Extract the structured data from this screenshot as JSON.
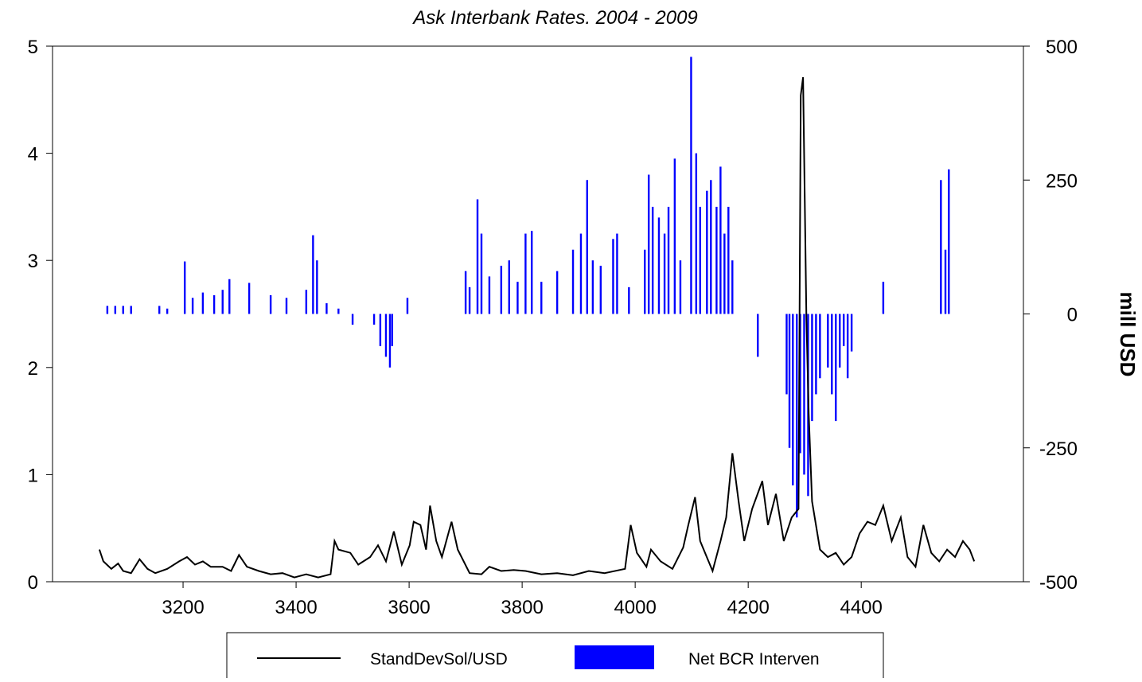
{
  "chart_data": {
    "type": "line",
    "title": "Ask Interbank Rates. 2004 - 2009",
    "y2label": "mill USD",
    "xlim": [
      2969,
      4687
    ],
    "xticks": [
      3200,
      3400,
      3600,
      3800,
      4000,
      4200,
      4400
    ],
    "ylim": [
      0,
      5
    ],
    "yticks": [
      0,
      1,
      2,
      3,
      4,
      5
    ],
    "y2lim": [
      -500,
      500
    ],
    "y2ticks": [
      -500,
      -250,
      0,
      250,
      500
    ],
    "series": [
      {
        "name": "StandDevSol/USD",
        "type": "line",
        "color": "#000000",
        "axis": "y",
        "x": [
          3052,
          3059,
          3073,
          3085,
          3094,
          3108,
          3123,
          3137,
          3151,
          3172,
          3193,
          3207,
          3221,
          3235,
          3249,
          3270,
          3285,
          3299,
          3313,
          3334,
          3355,
          3376,
          3397,
          3418,
          3439,
          3461,
          3468,
          3475,
          3496,
          3510,
          3531,
          3545,
          3559,
          3573,
          3587,
          3601,
          3608,
          3620,
          3630,
          3637,
          3648,
          3658,
          3675,
          3686,
          3707,
          3728,
          3742,
          3763,
          3785,
          3806,
          3834,
          3862,
          3890,
          3918,
          3946,
          3982,
          3992,
          4003,
          4020,
          4028,
          4045,
          4066,
          4085,
          4094,
          4106,
          4115,
          4137,
          4151,
          4161,
          4172,
          4183,
          4193,
          4207,
          4225,
          4235,
          4249,
          4263,
          4277,
          4289,
          4293,
          4297,
          4303,
          4307,
          4313,
          4327,
          4341,
          4355,
          4369,
          4383,
          4397,
          4411,
          4425,
          4439,
          4454,
          4470,
          4482,
          4496,
          4510,
          4524,
          4538,
          4552,
          4566,
          4580,
          4592,
          4600
        ],
        "values": [
          0.3,
          0.19,
          0.12,
          0.17,
          0.1,
          0.08,
          0.21,
          0.12,
          0.08,
          0.12,
          0.19,
          0.23,
          0.16,
          0.19,
          0.14,
          0.14,
          0.1,
          0.25,
          0.14,
          0.1,
          0.07,
          0.08,
          0.04,
          0.07,
          0.04,
          0.07,
          0.38,
          0.3,
          0.27,
          0.16,
          0.23,
          0.34,
          0.19,
          0.47,
          0.16,
          0.34,
          0.56,
          0.53,
          0.3,
          0.71,
          0.38,
          0.23,
          0.56,
          0.3,
          0.08,
          0.07,
          0.14,
          0.1,
          0.11,
          0.1,
          0.07,
          0.08,
          0.06,
          0.1,
          0.08,
          0.12,
          0.53,
          0.27,
          0.14,
          0.3,
          0.19,
          0.12,
          0.32,
          0.53,
          0.79,
          0.38,
          0.1,
          0.38,
          0.6,
          1.2,
          0.75,
          0.38,
          0.68,
          0.94,
          0.53,
          0.82,
          0.38,
          0.6,
          0.68,
          4.54,
          4.71,
          2.46,
          1.57,
          0.75,
          0.3,
          0.23,
          0.27,
          0.16,
          0.23,
          0.45,
          0.56,
          0.53,
          0.71,
          0.38,
          0.6,
          0.23,
          0.14,
          0.53,
          0.27,
          0.19,
          0.3,
          0.23,
          0.38,
          0.3,
          0.19
        ]
      },
      {
        "name": "Net BCR Interven",
        "type": "bar",
        "color": "#0000ff",
        "axis": "y2",
        "x": [
          3066,
          3080,
          3094,
          3108,
          3158,
          3172,
          3203,
          3217,
          3235,
          3255,
          3270,
          3282,
          3317,
          3355,
          3383,
          3418,
          3430,
          3437,
          3454,
          3475,
          3500,
          3538,
          3549,
          3559,
          3566,
          3570,
          3597,
          3700,
          3707,
          3721,
          3728,
          3742,
          3763,
          3777,
          3792,
          3806,
          3817,
          3834,
          3862,
          3890,
          3904,
          3915,
          3925,
          3939,
          3961,
          3968,
          3989,
          4017,
          4024,
          4031,
          4042,
          4052,
          4059,
          4070,
          4080,
          4099,
          4108,
          4115,
          4127,
          4134,
          4144,
          4151,
          4158,
          4165,
          4172,
          4217,
          4268,
          4273,
          4279,
          4286,
          4292,
          4299,
          4306,
          4313,
          4320,
          4327,
          4341,
          4348,
          4355,
          4362,
          4369,
          4376,
          4383,
          4439,
          4541,
          4549,
          4555
        ],
        "values": [
          15,
          15,
          15,
          15,
          15,
          10,
          98,
          30,
          40,
          35,
          45,
          65,
          58,
          35,
          30,
          45,
          147,
          100,
          20,
          10,
          -20,
          -20,
          -60,
          -80,
          -100,
          -60,
          30,
          80,
          50,
          214,
          150,
          70,
          90,
          100,
          60,
          150,
          155,
          60,
          80,
          120,
          150,
          250,
          100,
          90,
          140,
          150,
          50,
          120,
          260,
          200,
          180,
          150,
          200,
          290,
          100,
          480,
          300,
          200,
          230,
          250,
          200,
          275,
          150,
          200,
          100,
          -80,
          -150,
          -250,
          -320,
          -380,
          -260,
          -300,
          -340,
          -200,
          -150,
          -120,
          -100,
          -150,
          -200,
          -100,
          -60,
          -120,
          -70,
          60,
          250,
          120,
          270
        ]
      }
    ]
  }
}
